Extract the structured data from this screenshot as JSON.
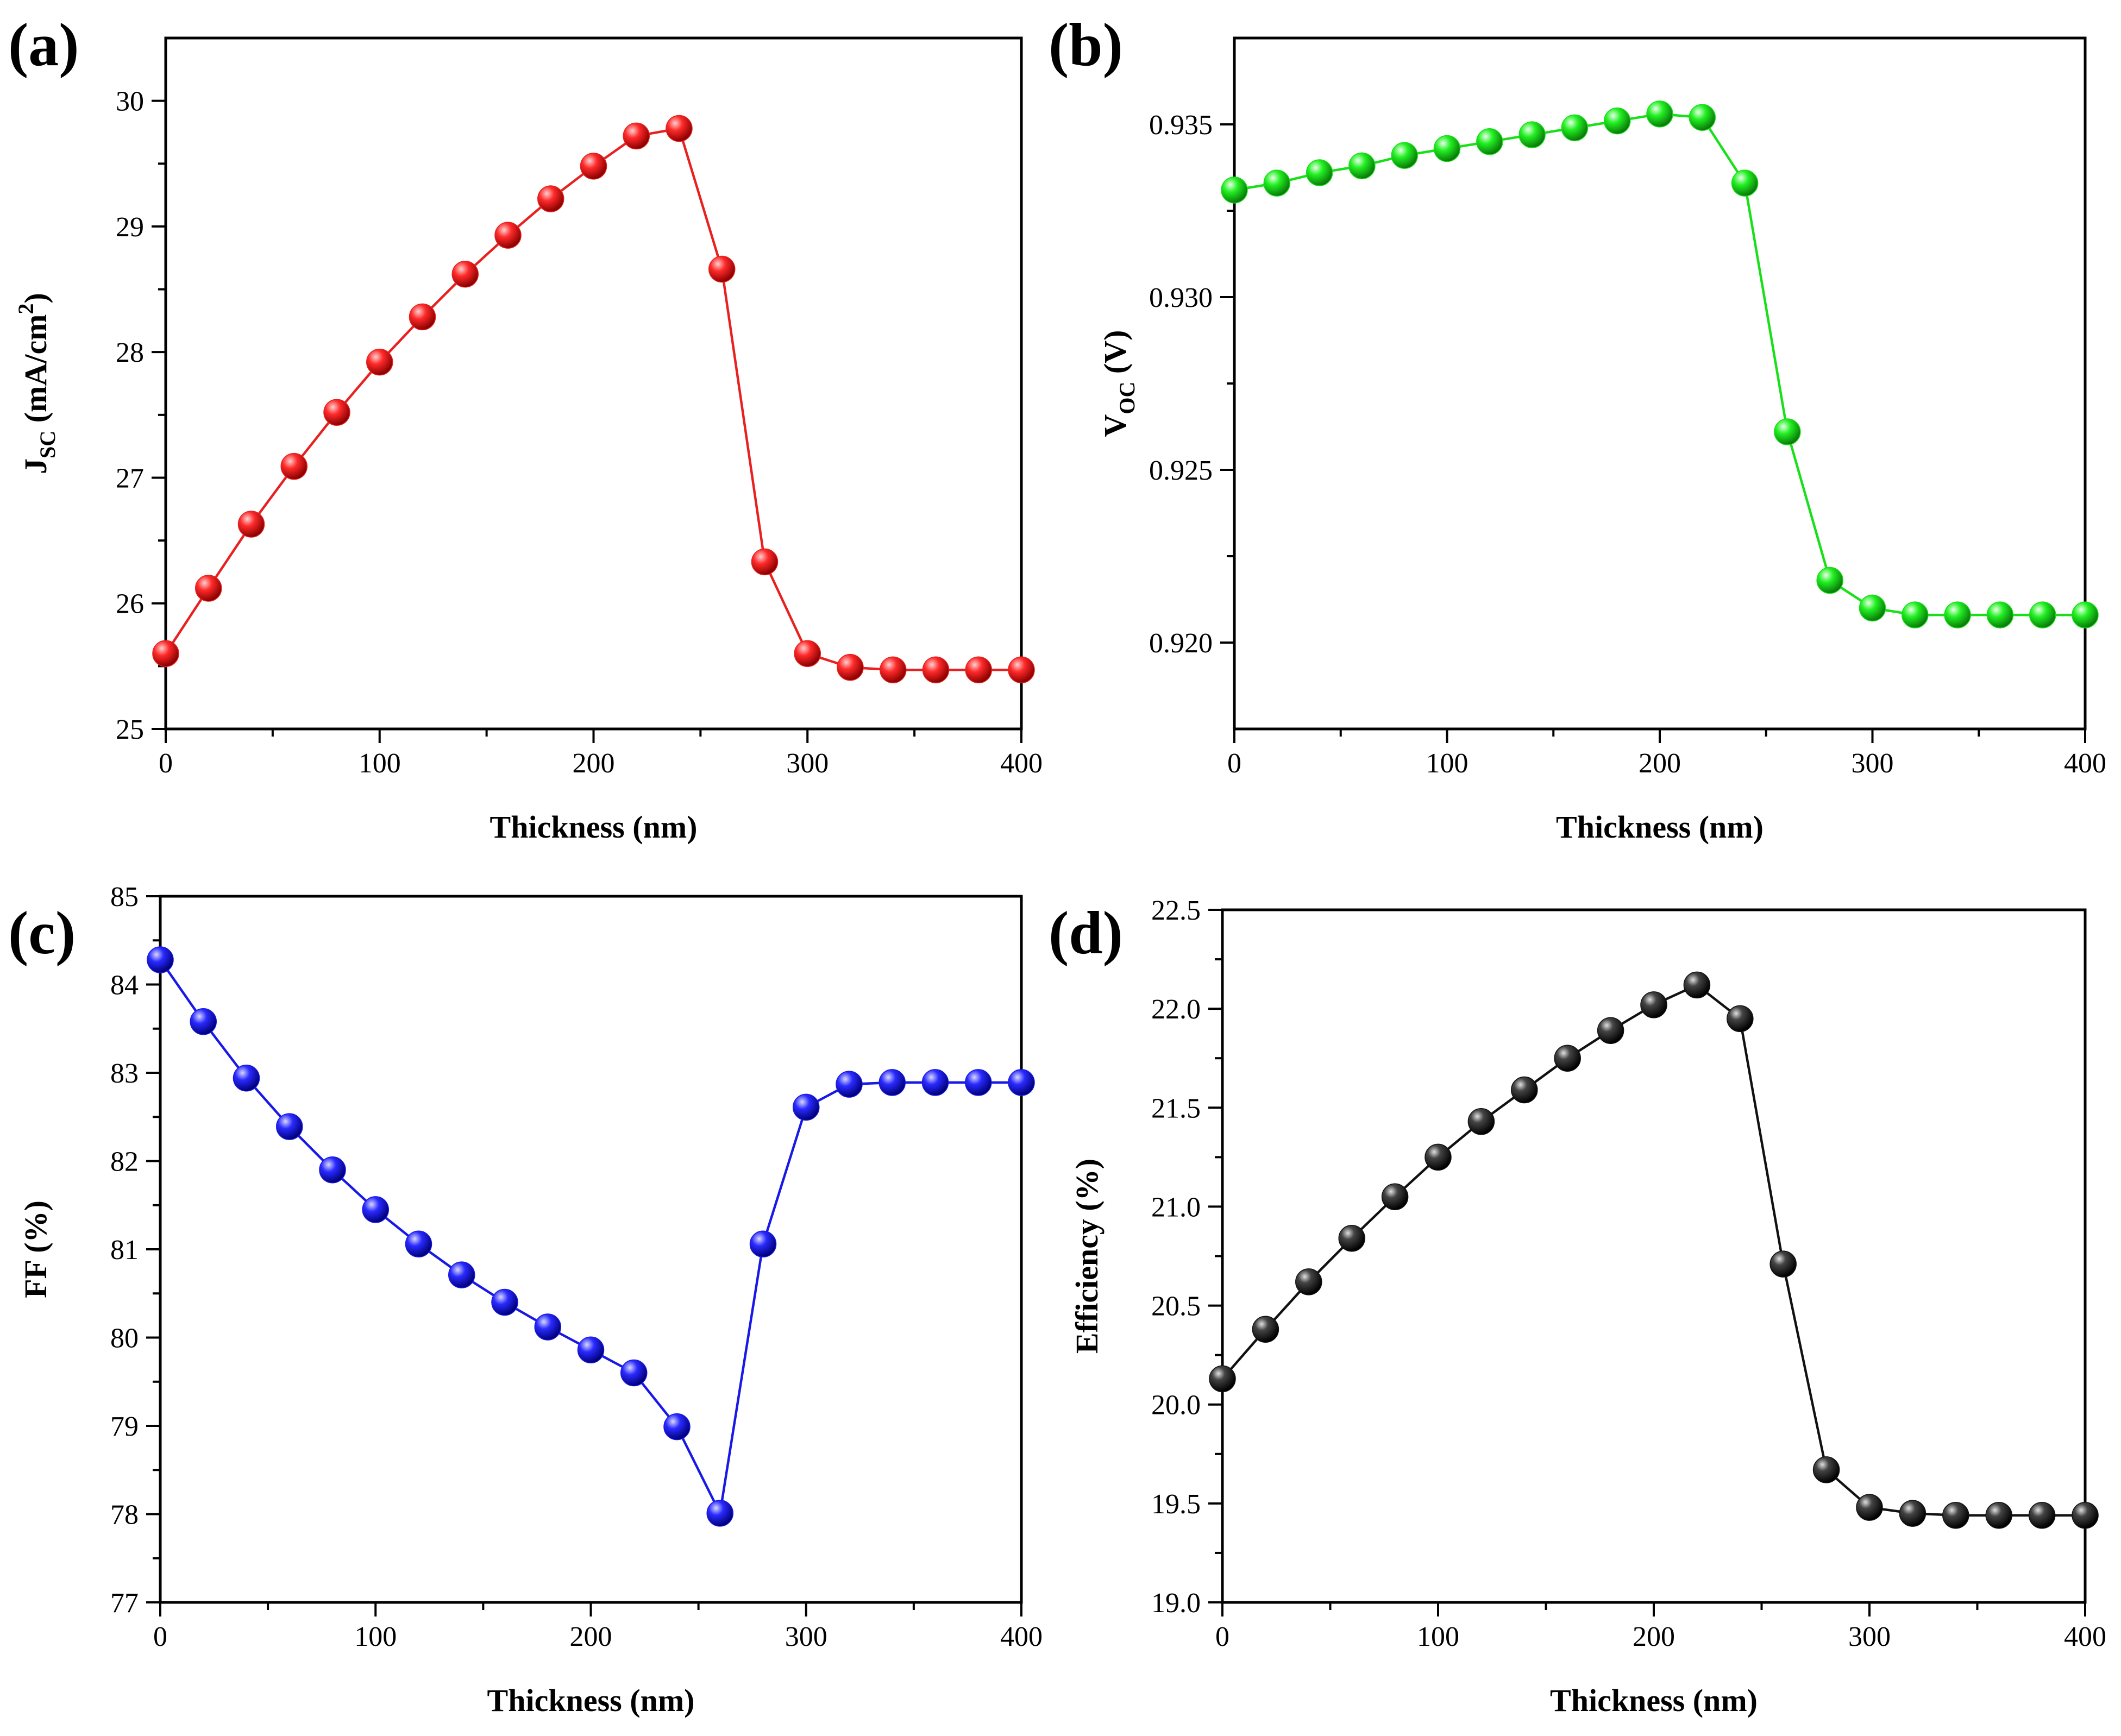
{
  "chart_data": [
    {
      "type": "line",
      "panel_label": "(a)",
      "xlabel": "Thickness (nm)",
      "ylabel": {
        "base": "J",
        "sub": "SC",
        "unit": " (mA/cm",
        "sup": "2",
        "close": ")"
      },
      "xlim": [
        0,
        400
      ],
      "ylim": [
        25,
        30.5
      ],
      "x_ticks": [
        0,
        100,
        200,
        300,
        400
      ],
      "y_ticks": [
        25,
        26,
        27,
        28,
        29,
        30
      ],
      "y_tick_labels": [
        "25",
        "26",
        "27",
        "28",
        "29",
        "30"
      ],
      "color": "#e82020",
      "x": [
        0,
        20,
        40,
        60,
        80,
        100,
        120,
        140,
        160,
        180,
        200,
        220,
        240,
        260,
        280,
        300,
        320,
        340,
        360,
        380,
        400
      ],
      "y": [
        25.6,
        26.12,
        26.63,
        27.09,
        27.52,
        27.92,
        28.28,
        28.62,
        28.93,
        29.22,
        29.48,
        29.72,
        29.78,
        28.66,
        26.33,
        25.6,
        25.49,
        25.47,
        25.47,
        25.47,
        25.47
      ]
    },
    {
      "type": "line",
      "panel_label": "(b)",
      "xlabel": "Thickness (nm)",
      "ylabel": {
        "base": "V",
        "sub": "OC",
        "unit": " (V)",
        "sup": "",
        "close": ""
      },
      "xlim": [
        0,
        400
      ],
      "ylim": [
        0.9175,
        0.9375
      ],
      "x_ticks": [
        0,
        100,
        200,
        300,
        400
      ],
      "y_ticks": [
        0.92,
        0.925,
        0.93,
        0.935
      ],
      "y_tick_labels": [
        "0.920",
        "0.925",
        "0.930",
        "0.935"
      ],
      "color": "#18e018",
      "x": [
        0,
        20,
        40,
        60,
        80,
        100,
        120,
        140,
        160,
        180,
        200,
        220,
        240,
        260,
        280,
        300,
        320,
        340,
        360,
        380,
        400
      ],
      "y": [
        0.9331,
        0.9333,
        0.9336,
        0.9338,
        0.9341,
        0.9343,
        0.9345,
        0.9347,
        0.9349,
        0.9351,
        0.9353,
        0.9352,
        0.9333,
        0.9261,
        0.9218,
        0.921,
        0.9208,
        0.9208,
        0.9208,
        0.9208,
        0.9208
      ]
    },
    {
      "type": "line",
      "panel_label": "(c)",
      "xlabel": "Thickness (nm)",
      "ylabel": {
        "base": "FF (%)",
        "sub": "",
        "unit": "",
        "sup": "",
        "close": ""
      },
      "xlim": [
        0,
        400
      ],
      "ylim": [
        77,
        85
      ],
      "x_ticks": [
        0,
        100,
        200,
        300,
        400
      ],
      "y_ticks": [
        77,
        78,
        79,
        80,
        81,
        82,
        83,
        84,
        85
      ],
      "y_tick_labels": [
        "77",
        "78",
        "79",
        "80",
        "81",
        "82",
        "83",
        "84",
        "85"
      ],
      "color": "#1818e8",
      "x": [
        0,
        20,
        40,
        60,
        80,
        100,
        120,
        140,
        160,
        180,
        200,
        220,
        240,
        260,
        280,
        300,
        320,
        340,
        360,
        380,
        400
      ],
      "y": [
        84.28,
        83.58,
        82.94,
        82.39,
        81.9,
        81.45,
        81.06,
        80.71,
        80.4,
        80.12,
        79.86,
        79.6,
        78.99,
        78.01,
        81.06,
        82.61,
        82.87,
        82.89,
        82.89,
        82.89,
        82.89
      ]
    },
    {
      "type": "line",
      "panel_label": "(d)",
      "xlabel": "Thickness (nm)",
      "ylabel": {
        "base": "Efficiency (%)",
        "sub": "",
        "unit": "",
        "sup": "",
        "close": ""
      },
      "xlim": [
        0,
        400
      ],
      "ylim": [
        19,
        22.5
      ],
      "x_ticks": [
        0,
        100,
        200,
        300,
        400
      ],
      "y_ticks": [
        19.0,
        19.5,
        20.0,
        20.5,
        21.0,
        21.5,
        22.0,
        22.5
      ],
      "y_tick_labels": [
        "19.0",
        "19.5",
        "20.0",
        "20.5",
        "21.0",
        "21.5",
        "22.0",
        "22.5"
      ],
      "color": "#111111",
      "x": [
        0,
        20,
        40,
        60,
        80,
        100,
        120,
        140,
        160,
        180,
        200,
        220,
        240,
        260,
        280,
        300,
        320,
        340,
        360,
        380,
        400
      ],
      "y": [
        20.13,
        20.38,
        20.62,
        20.84,
        21.05,
        21.25,
        21.43,
        21.59,
        21.75,
        21.89,
        22.02,
        22.12,
        21.95,
        20.71,
        19.67,
        19.48,
        19.45,
        19.44,
        19.44,
        19.44,
        19.44
      ]
    }
  ]
}
